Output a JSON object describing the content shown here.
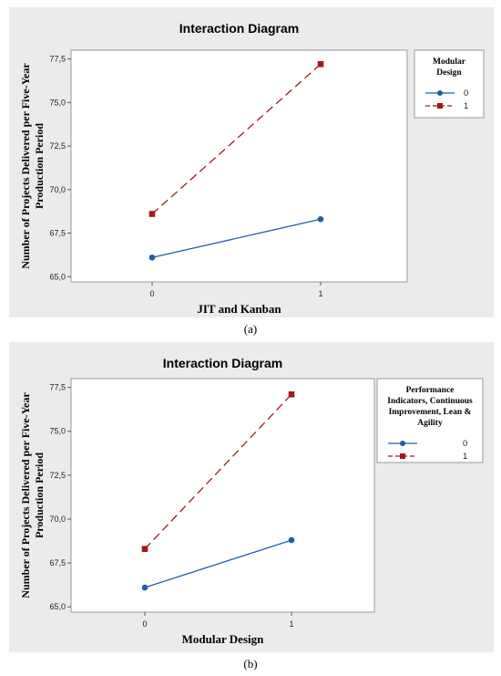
{
  "chart_data": [
    {
      "type": "line",
      "title": "Interaction Diagram",
      "xlabel": "JIT and Kanban",
      "ylabel": [
        "Number of Projects Delivered per Five-Year",
        "Production Period"
      ],
      "x": [
        "0",
        "1"
      ],
      "ylim": [
        64.7,
        78.0
      ],
      "yticks": [
        "65,0",
        "67,5",
        "70,0",
        "72,5",
        "75,0",
        "77,5"
      ],
      "ytick_values": [
        65.0,
        67.5,
        70.0,
        72.5,
        75.0,
        77.5
      ],
      "legend_title": [
        "Modular",
        "Design"
      ],
      "legend_position": "right",
      "series": [
        {
          "name": "0",
          "values": [
            66.1,
            68.3
          ],
          "color": "#1f5fa8",
          "marker": "circle",
          "dash": "solid"
        },
        {
          "name": "1",
          "values": [
            68.6,
            77.2
          ],
          "color": "#a01a1a",
          "marker": "square",
          "dash": "dashed"
        }
      ]
    },
    {
      "type": "line",
      "title": "Interaction Diagram",
      "xlabel": "Modular Design",
      "ylabel": [
        "Number of Projects Delivered per Five-Year",
        "Production Period"
      ],
      "x": [
        "0",
        "1"
      ],
      "ylim": [
        64.7,
        78.0
      ],
      "yticks": [
        "65,0",
        "67,5",
        "70,0",
        "72,5",
        "75,0",
        "77,5"
      ],
      "ytick_values": [
        65.0,
        67.5,
        70.0,
        72.5,
        75.0,
        77.5
      ],
      "legend_title": [
        "Performance",
        "Indicators, Continuous",
        "Improvement, Lean &",
        "Agility"
      ],
      "legend_position": "right",
      "series": [
        {
          "name": "0",
          "values": [
            66.1,
            68.8
          ],
          "color": "#1f5fa8",
          "marker": "circle",
          "dash": "solid"
        },
        {
          "name": "1",
          "values": [
            68.3,
            77.1
          ],
          "color": "#a01a1a",
          "marker": "square",
          "dash": "dashed"
        }
      ]
    }
  ],
  "captions": {
    "a": "(a)",
    "b": "(b)"
  }
}
